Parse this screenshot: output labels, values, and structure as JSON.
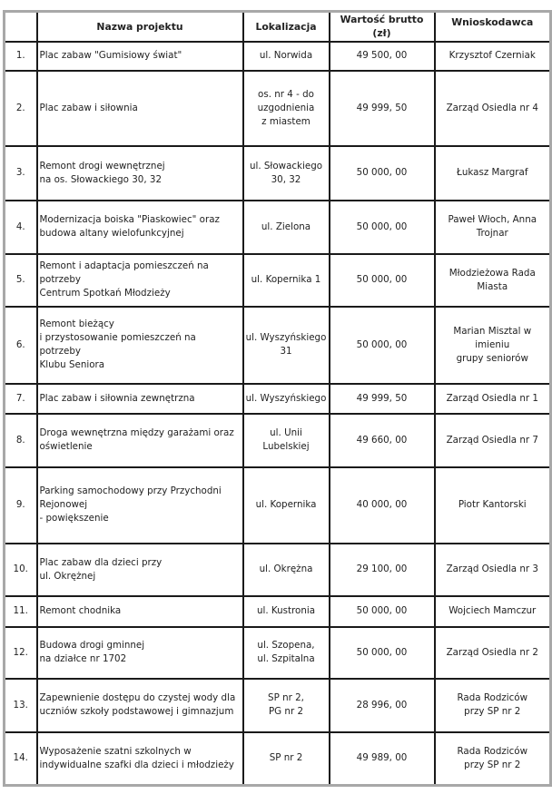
{
  "headers": [
    "",
    "Nazwa projektu",
    "Lokalizacja",
    "Wartość brutto (zł)",
    "Wnioskodawca"
  ],
  "rows": [
    {
      "no": "1.",
      "name": [
        "Plac zabaw \"Gumisiowy świat\""
      ],
      "loc": [
        "ul. Norwida"
      ],
      "value": "49 500, 00",
      "applicant": [
        "Krzysztof Czerniak"
      ]
    },
    {
      "no": "2.",
      "name": [
        "Plac zabaw i siłownia"
      ],
      "loc": [
        "os. nr 4 - do",
        "uzgodnienia",
        "z miastem"
      ],
      "value": "49 999, 50",
      "applicant": [
        "Zarząd Osiedla nr 4"
      ]
    },
    {
      "no": "3.",
      "name": [
        "Remont drogi wewnętrznej",
        "na os. Słowackiego 30, 32"
      ],
      "loc": [
        "ul. Słowackiego",
        "30, 32"
      ],
      "value": "50 000, 00",
      "applicant": [
        "Łukasz Margraf"
      ]
    },
    {
      "no": "4.",
      "name": [
        "Modernizacja boiska \"Piaskowiec\" oraz",
        "budowa altany wielofunkcyjnej"
      ],
      "loc": [
        "ul. Zielona"
      ],
      "value": "50 000, 00",
      "applicant": [
        "Paweł Włoch, Anna",
        "Trojnar"
      ]
    },
    {
      "no": "5.",
      "name": [
        "Remont i adaptacja pomieszczeń na potrzeby",
        "Centrum Spotkań Młodzieży"
      ],
      "loc": [
        "ul. Kopernika 1"
      ],
      "value": "50 000, 00",
      "applicant": [
        "Młodzieżowa Rada",
        "Miasta"
      ]
    },
    {
      "no": "6.",
      "name": [
        "Remont bieżący",
        "i przystosowanie pomieszczeń na potrzeby",
        "Klubu Seniora"
      ],
      "loc": [
        "ul. Wyszyńskiego",
        "31"
      ],
      "value": "50 000, 00",
      "applicant": [
        "Marian Misztal w imieniu",
        "grupy seniorów"
      ]
    },
    {
      "no": "7.",
      "name": [
        "Plac zabaw i siłownia zewnętrzna"
      ],
      "loc": [
        "ul. Wyszyńskiego"
      ],
      "value": "49 999, 50",
      "applicant": [
        "Zarząd Osiedla nr 1"
      ]
    },
    {
      "no": "8.",
      "name": [
        "Droga wewnętrzna między garażami oraz",
        "oświetlenie"
      ],
      "loc": [
        "ul. Unii Lubelskiej"
      ],
      "value": "49 660, 00",
      "applicant": [
        "Zarząd Osiedla nr 7"
      ]
    },
    {
      "no": "9.",
      "name": [
        "Parking samochodowy przy Przychodni",
        "Rejonowej",
        "- powiększenie"
      ],
      "loc": [
        "ul. Kopernika"
      ],
      "value": "40 000, 00",
      "applicant": [
        "Piotr Kantorski"
      ]
    },
    {
      "no": "10.",
      "name": [
        "Plac zabaw dla dzieci przy",
        "ul. Okrężnej"
      ],
      "loc": [
        "ul. Okrężna"
      ],
      "value": "29 100, 00",
      "applicant": [
        "Zarząd Osiedla nr 3"
      ]
    },
    {
      "no": "11.",
      "name": [
        "Remont chodnika"
      ],
      "loc": [
        "ul. Kustronia"
      ],
      "value": "50 000, 00",
      "applicant": [
        "Wojciech Mamczur"
      ]
    },
    {
      "no": "12.",
      "name": [
        "Budowa drogi gminnej",
        "na działce nr 1702"
      ],
      "loc": [
        "ul. Szopena,",
        "ul. Szpitalna"
      ],
      "value": "50 000, 00",
      "applicant": [
        "Zarząd Osiedla nr 2"
      ]
    },
    {
      "no": "13.",
      "name": [
        "Zapewnienie dostępu do czystej wody dla",
        "uczniów szkoły podstawowej i gimnazjum"
      ],
      "loc": [
        "SP nr 2,",
        "PG nr 2"
      ],
      "value": "28 996, 00",
      "applicant": [
        "Rada Rodziców",
        "przy SP nr 2"
      ]
    },
    {
      "no": "14.",
      "name": [
        "Wyposażenie szatni szkolnych w",
        "indywidualne szafki dla dzieci i młodzieży"
      ],
      "loc": [
        "SP nr 2"
      ],
      "value": "49 989, 00",
      "applicant": [
        "Rada Rodziców",
        "przy SP nr 2"
      ]
    }
  ]
}
